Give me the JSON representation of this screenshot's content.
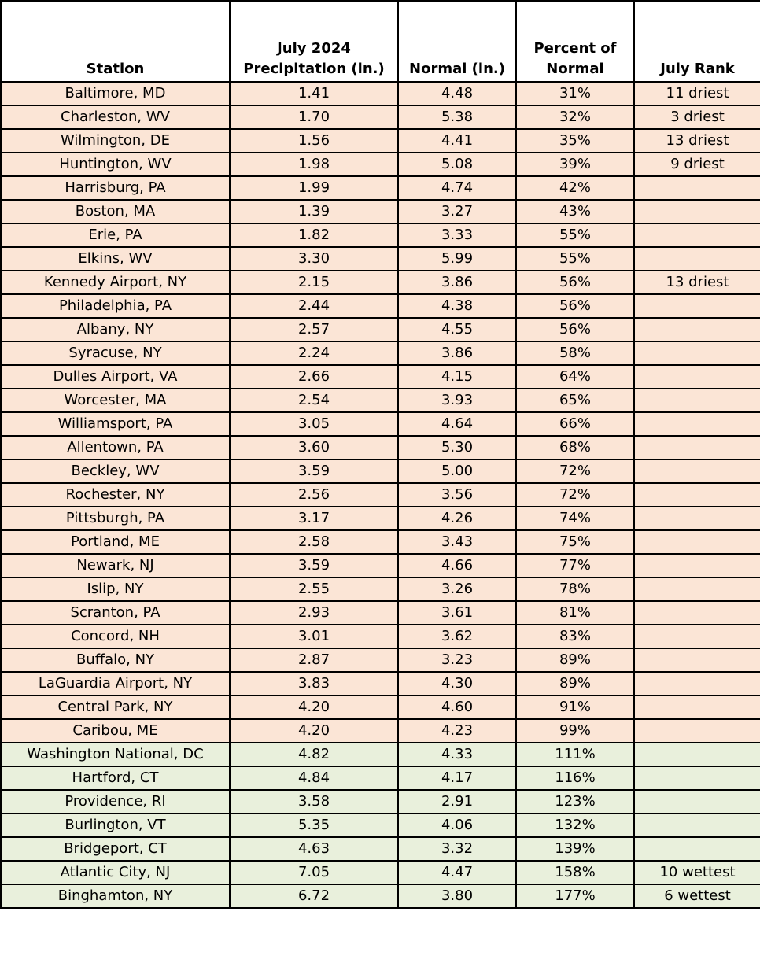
{
  "table": {
    "headers": [
      "Station",
      "July 2024 Precipitation (in.)",
      "Normal (in.)",
      "Percent of Normal",
      "July Rank"
    ],
    "rows": [
      {
        "cells": [
          "Baltimore, MD",
          "1.41",
          "4.48",
          "31%",
          "11 driest"
        ],
        "color": "#fbe5d6"
      },
      {
        "cells": [
          "Charleston, WV",
          "1.70",
          "5.38",
          "32%",
          "3 driest"
        ],
        "color": "#fbe5d6"
      },
      {
        "cells": [
          "Wilmington, DE",
          "1.56",
          "4.41",
          "35%",
          "13 driest"
        ],
        "color": "#fbe5d6"
      },
      {
        "cells": [
          "Huntington, WV",
          "1.98",
          "5.08",
          "39%",
          "9 driest"
        ],
        "color": "#fbe5d6"
      },
      {
        "cells": [
          "Harrisburg, PA",
          "1.99",
          "4.74",
          "42%"
        ],
        "color": "#fbe5d6"
      },
      {
        "cells": [
          "Boston, MA",
          "1.39",
          "3.27",
          "43%"
        ],
        "color": "#fbe5d6"
      },
      {
        "cells": [
          "Erie, PA",
          "1.82",
          "3.33",
          "55%"
        ],
        "color": "#fbe5d6"
      },
      {
        "cells": [
          "Elkins, WV",
          "3.30",
          "5.99",
          "55%"
        ],
        "color": "#fbe5d6"
      },
      {
        "cells": [
          "Kennedy Airport, NY",
          "2.15",
          "3.86",
          "56%",
          "13 driest"
        ],
        "color": "#fbe5d6"
      },
      {
        "cells": [
          "Philadelphia, PA",
          "2.44",
          "4.38",
          "56%"
        ],
        "color": "#fbe5d6"
      },
      {
        "cells": [
          "Albany, NY",
          "2.57",
          "4.55",
          "56%"
        ],
        "color": "#fbe5d6"
      },
      {
        "cells": [
          "Syracuse, NY",
          "2.24",
          "3.86",
          "58%"
        ],
        "color": "#fbe5d6"
      },
      {
        "cells": [
          "Dulles Airport, VA",
          "2.66",
          "4.15",
          "64%"
        ],
        "color": "#fbe5d6"
      },
      {
        "cells": [
          "Worcester, MA",
          "2.54",
          "3.93",
          "65%"
        ],
        "color": "#fbe5d6"
      },
      {
        "cells": [
          "Williamsport, PA",
          "3.05",
          "4.64",
          "66%"
        ],
        "color": "#fbe5d6"
      },
      {
        "cells": [
          "Allentown, PA",
          "3.60",
          "5.30",
          "68%"
        ],
        "color": "#fbe5d6"
      },
      {
        "cells": [
          "Beckley, WV",
          "3.59",
          "5.00",
          "72%"
        ],
        "color": "#fbe5d6"
      },
      {
        "cells": [
          "Rochester, NY",
          "2.56",
          "3.56",
          "72%"
        ],
        "color": "#fbe5d6"
      },
      {
        "cells": [
          "Pittsburgh, PA",
          "3.17",
          "4.26",
          "74%"
        ],
        "color": "#fbe5d6"
      },
      {
        "cells": [
          "Portland, ME",
          "2.58",
          "3.43",
          "75%"
        ],
        "color": "#fbe5d6"
      },
      {
        "cells": [
          "Newark, NJ",
          "3.59",
          "4.66",
          "77%"
        ],
        "color": "#fbe5d6"
      },
      {
        "cells": [
          "Islip, NY",
          "2.55",
          "3.26",
          "78%"
        ],
        "color": "#fbe5d6"
      },
      {
        "cells": [
          "Scranton, PA",
          "2.93",
          "3.61",
          "81%"
        ],
        "color": "#fbe5d6"
      },
      {
        "cells": [
          "Concord, NH",
          "3.01",
          "3.62",
          "83%"
        ],
        "color": "#fbe5d6"
      },
      {
        "cells": [
          "Buffalo, NY",
          "2.87",
          "3.23",
          "89%"
        ],
        "color": "#fbe5d6"
      },
      {
        "cells": [
          "LaGuardia Airport, NY",
          "3.83",
          "4.30",
          "89%"
        ],
        "color": "#fbe5d6"
      },
      {
        "cells": [
          "Central Park, NY",
          "4.20",
          "4.60",
          "91%"
        ],
        "color": "#fbe5d6"
      },
      {
        "cells": [
          "Caribou, ME",
          "4.20",
          "4.23",
          "99%"
        ],
        "color": "#fbe5d6"
      },
      {
        "cells": [
          "Washington National, DC",
          "4.82",
          "4.33",
          "111%"
        ],
        "color": "#e9f0dc"
      },
      {
        "cells": [
          "Hartford, CT",
          "4.84",
          "4.17",
          "116%"
        ],
        "color": "#e9f0dc"
      },
      {
        "cells": [
          "Providence, RI",
          "3.58",
          "2.91",
          "123%"
        ],
        "color": "#e9f0dc"
      },
      {
        "cells": [
          "Burlington, VT",
          "5.35",
          "4.06",
          "132%"
        ],
        "color": "#e9f0dc"
      },
      {
        "cells": [
          "Bridgeport, CT",
          "4.63",
          "3.32",
          "139%"
        ],
        "color": "#e9f0dc"
      },
      {
        "cells": [
          "Atlantic City, NJ",
          "7.05",
          "4.47",
          "158%",
          "10 wettest"
        ],
        "color": "#e9f0dc"
      },
      {
        "cells": [
          "Binghamton, NY",
          "6.72",
          "3.80",
          "177%",
          "6 wettest"
        ],
        "color": "#e9f0dc"
      }
    ]
  }
}
